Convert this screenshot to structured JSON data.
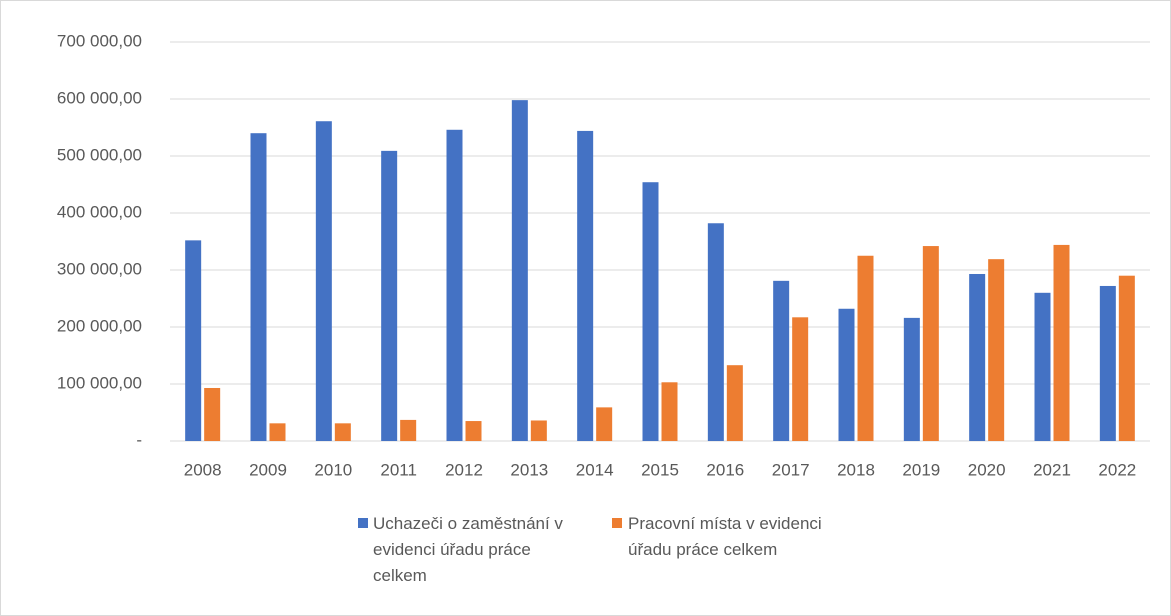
{
  "chart_data": {
    "type": "bar",
    "categories": [
      "2008",
      "2009",
      "2010",
      "2011",
      "2012",
      "2013",
      "2014",
      "2015",
      "2016",
      "2017",
      "2018",
      "2019",
      "2020",
      "2021",
      "2022"
    ],
    "series": [
      {
        "name": "Uchazeči o zaměstnání v evidenci úřadu práce celkem",
        "color": "#4472c4",
        "values": [
          352000,
          540000,
          561000,
          509000,
          546000,
          598000,
          544000,
          454000,
          382000,
          281000,
          232000,
          216000,
          293000,
          260000,
          272000
        ]
      },
      {
        "name": "Pracovní místa v evidenci úřadu práce celkem",
        "color": "#ed7d31",
        "values": [
          93000,
          31000,
          31000,
          37000,
          35000,
          36000,
          59000,
          103000,
          133000,
          217000,
          325000,
          342000,
          319000,
          344000,
          290000
        ]
      }
    ],
    "ylim": [
      0,
      700000
    ],
    "yticks": [
      {
        "value": 0,
        "label": "-"
      },
      {
        "value": 100000,
        "label": "100 000,00"
      },
      {
        "value": 200000,
        "label": "200 000,00"
      },
      {
        "value": 300000,
        "label": "300 000,00"
      },
      {
        "value": 400000,
        "label": "400 000,00"
      },
      {
        "value": 500000,
        "label": "500 000,00"
      },
      {
        "value": 600000,
        "label": "600 000,00"
      },
      {
        "value": 700000,
        "label": "700 000,00"
      }
    ],
    "grid": true,
    "legend": "bottom"
  }
}
